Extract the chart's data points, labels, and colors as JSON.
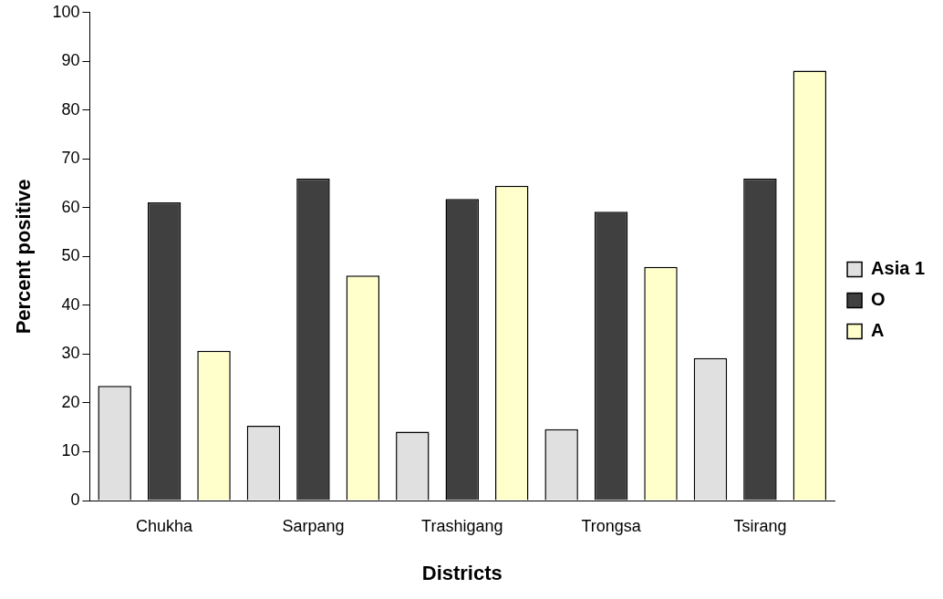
{
  "chart_data": {
    "type": "bar",
    "xlabel": "Districts",
    "ylabel": "Percent positive",
    "categories": [
      "Chukha",
      "Sarpang",
      "Trashigang",
      "Trongsa",
      "Tsirang"
    ],
    "series": [
      {
        "name": "Asia 1",
        "color": "#e0e0e0",
        "values": [
          23.5,
          15.3,
          14.1,
          14.6,
          29.2
        ]
      },
      {
        "name": "O",
        "color": "#404040",
        "values": [
          61.1,
          66.0,
          61.8,
          59.2,
          66.0
        ]
      },
      {
        "name": "A",
        "color": "#ffffcc",
        "values": [
          30.7,
          46.1,
          64.5,
          47.9,
          88.1
        ]
      }
    ],
    "ylim": [
      0,
      100
    ],
    "yticks": [
      0,
      10,
      20,
      30,
      40,
      50,
      60,
      70,
      80,
      90,
      100
    ],
    "grid": false,
    "legend": "right"
  }
}
